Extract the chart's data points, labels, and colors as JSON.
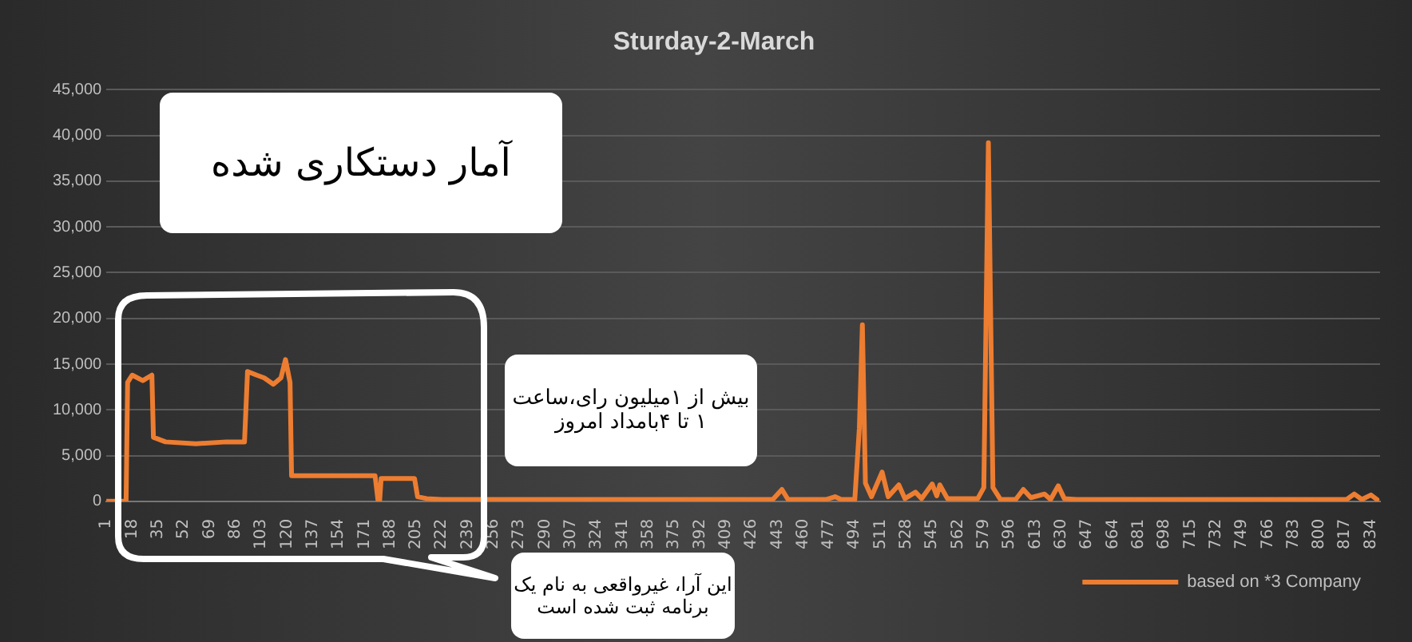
{
  "chart_data": {
    "type": "line",
    "title": "Sturday-2-March",
    "x": [
      1,
      14,
      15,
      18,
      25,
      31,
      32,
      40,
      60,
      80,
      92,
      94,
      100,
      105,
      111,
      116,
      119,
      122,
      123,
      140,
      160,
      178,
      180,
      181,
      182,
      190,
      204,
      206,
      212,
      222,
      260,
      300,
      350,
      400,
      440,
      446,
      450,
      475,
      481,
      485,
      494,
      497,
      499,
      501,
      505,
      512,
      516,
      523,
      527,
      534,
      538,
      545,
      548,
      550,
      555,
      575,
      579,
      582,
      585,
      590,
      600,
      605,
      610,
      619,
      623,
      628,
      632,
      640,
      700,
      760,
      800,
      818,
      823,
      828,
      834,
      838
    ],
    "series": [
      {
        "name": "based on *3 Company",
        "color": "#ed7d31",
        "values": [
          0,
          0,
          13000,
          13800,
          13200,
          13800,
          7000,
          6500,
          6300,
          6500,
          6500,
          14200,
          13800,
          13500,
          12800,
          13500,
          15500,
          13000,
          2800,
          2800,
          2800,
          2800,
          0,
          0,
          2500,
          2500,
          2500,
          500,
          300,
          200,
          200,
          200,
          200,
          200,
          200,
          1300,
          200,
          200,
          500,
          200,
          200,
          8000,
          19300,
          2000,
          500,
          3200,
          500,
          1800,
          300,
          1000,
          300,
          1900,
          600,
          1800,
          300,
          300,
          1500,
          39200,
          1500,
          200,
          200,
          1300,
          400,
          800,
          200,
          1700,
          300,
          200,
          200,
          200,
          200,
          200,
          800,
          200,
          700,
          200
        ]
      }
    ],
    "xlim": [
      1,
      840
    ],
    "xticks": [
      1,
      18,
      35,
      52,
      69,
      86,
      103,
      120,
      137,
      154,
      171,
      188,
      205,
      222,
      239,
      256,
      273,
      290,
      307,
      324,
      341,
      358,
      375,
      392,
      409,
      426,
      443,
      460,
      477,
      494,
      511,
      528,
      545,
      562,
      579,
      596,
      613,
      630,
      647,
      664,
      681,
      698,
      715,
      732,
      749,
      766,
      783,
      800,
      817,
      834
    ],
    "ylim": [
      0,
      45000
    ],
    "yticks": [
      {
        "value": 0,
        "label": "0"
      },
      {
        "value": 5000,
        "label": "5,000"
      },
      {
        "value": 10000,
        "label": "10,000"
      },
      {
        "value": 15000,
        "label": "15,000"
      },
      {
        "value": 20000,
        "label": "20,000"
      },
      {
        "value": 25000,
        "label": "25,000"
      },
      {
        "value": 30000,
        "label": "30,000"
      },
      {
        "value": 35000,
        "label": "35,000"
      },
      {
        "value": 40000,
        "label": "40,000"
      },
      {
        "value": 45000,
        "label": "45,000"
      }
    ],
    "grid": "y",
    "legend": "bottom",
    "marker": "none",
    "line_style": "solid",
    "annotations": [
      "آمار دستکاری شده",
      "بیش از ۱میلیون رای،ساعت ۱ تا ۴بامداد امروز",
      "این آرا، غیرواقعی به نام یک برنامه ثبت شده است"
    ]
  }
}
